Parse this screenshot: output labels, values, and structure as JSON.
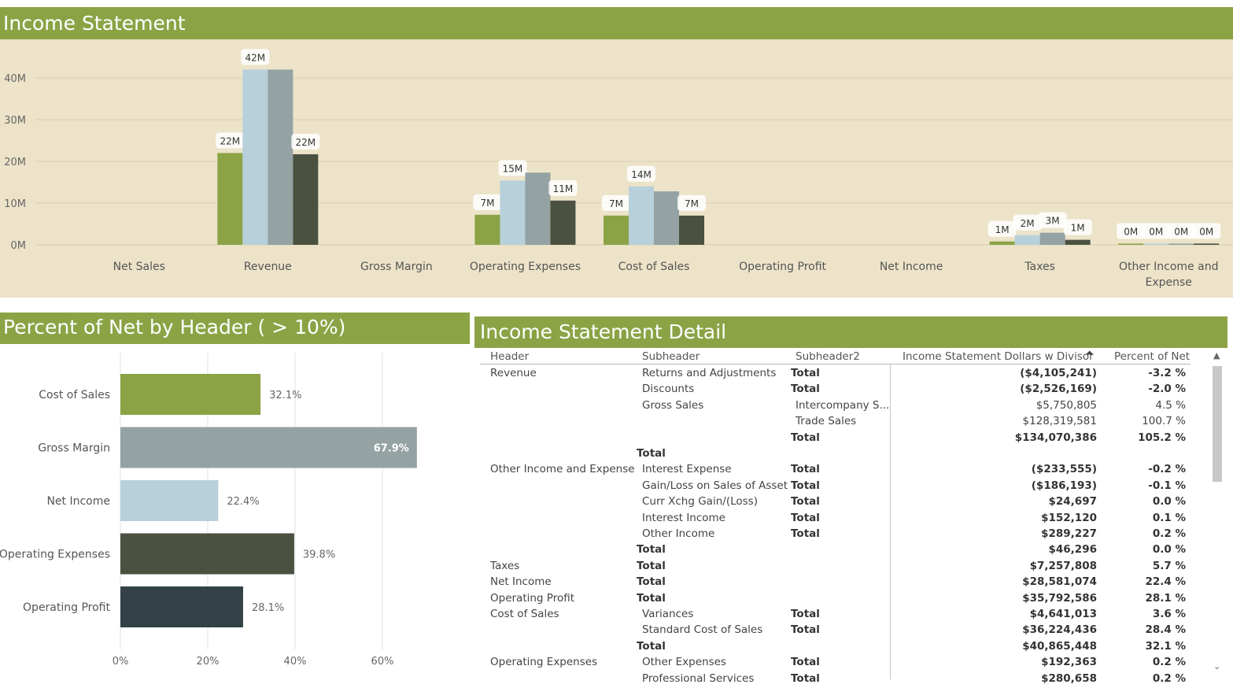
{
  "top_banner": {
    "title": "Income Statement"
  },
  "left_banner": {
    "title": "Percent of Net by Header ( > 10%)"
  },
  "right_banner": {
    "title": "Income Statement Detail"
  },
  "colors": {
    "green": "#8ba345",
    "lightblue": "#b7d0da",
    "gray": "#94a2a3",
    "dark": "#4b5140",
    "slate": "#344147",
    "panel": "#ece3c9"
  },
  "chart_data": [
    {
      "type": "bar",
      "title": "",
      "ylim": [
        0,
        45
      ],
      "y_ticks": [
        "0M",
        "10M",
        "20M",
        "30M",
        "40M"
      ],
      "y_tick_values": [
        0,
        10,
        20,
        30,
        40
      ],
      "categories": [
        "Net Sales",
        "Revenue",
        "Gross Margin",
        "Operating Expenses",
        "Cost of Sales",
        "Operating Profit",
        "Net Income",
        "Taxes",
        "Other Income and Expense"
      ],
      "series": [
        {
          "values": [
            null,
            22,
            null,
            7.2,
            7,
            null,
            null,
            0.8,
            0.3
          ],
          "labels": [
            "",
            "22M",
            "",
            "7M",
            "7M",
            "",
            "",
            "1M",
            "0M"
          ],
          "color": "#8ba345"
        },
        {
          "values": [
            null,
            42,
            null,
            15.4,
            14,
            null,
            null,
            2.3,
            0.3
          ],
          "labels": [
            "",
            "42M",
            "",
            "15M",
            "14M",
            "",
            "",
            "2M",
            "0M"
          ],
          "color": "#b7d0da"
        },
        {
          "values": [
            null,
            42,
            null,
            17.3,
            12.8,
            null,
            null,
            2.9,
            0.3
          ],
          "labels": [
            "",
            "",
            "",
            "",
            "",
            "",
            "",
            "3M",
            "0M"
          ],
          "color": "#94a2a3"
        },
        {
          "values": [
            null,
            21.7,
            null,
            10.6,
            7,
            null,
            null,
            1.2,
            0.3
          ],
          "labels": [
            "",
            "22M",
            "",
            "11M",
            "7M",
            "",
            "",
            "1M",
            "0M"
          ],
          "color": "#4b5140"
        }
      ],
      "grid": true
    },
    {
      "type": "bar",
      "orientation": "horizontal",
      "categories": [
        "Cost of Sales",
        "Gross Margin",
        "Net Income",
        "Operating Expenses",
        "Operating Profit"
      ],
      "values": [
        32.1,
        67.9,
        22.4,
        39.8,
        28.1
      ],
      "labels": [
        "32.1%",
        "67.9%",
        "22.4%",
        "39.8%",
        "28.1%"
      ],
      "colors": [
        "#8ba345",
        "#94a2a3",
        "#b7d0da",
        "#4b5140",
        "#344147"
      ],
      "x_ticks": [
        "0%",
        "20%",
        "40%",
        "60%"
      ],
      "x_tick_values": [
        0,
        20,
        40,
        60
      ],
      "xlim": [
        0,
        75
      ],
      "grid": true
    }
  ],
  "table": {
    "headers": [
      "Header",
      "Subheader",
      "Subheader2",
      "Income Statement Dollars w Divisor",
      "Percent of Net"
    ],
    "sort_icon": "sort-ascending-icon",
    "rows": [
      {
        "h": "Revenue",
        "s": "Returns and Adjustments",
        "s2": "Total",
        "s2pos": "t",
        "d": "($4,105,241)",
        "p": "-3.2 %",
        "bold": true
      },
      {
        "h": "",
        "s": "Discounts",
        "s2": "Total",
        "s2pos": "t",
        "d": "($2,526,169)",
        "p": "-2.0 %",
        "bold": true
      },
      {
        "h": "",
        "s": "Gross Sales",
        "s2": "Intercompany S...",
        "s2pos": "n",
        "d": "$5,750,805",
        "p": "4.5 %",
        "bold": false
      },
      {
        "h": "",
        "s": "",
        "s2": "Trade Sales",
        "s2pos": "n",
        "d": "$128,319,581",
        "p": "100.7 %",
        "bold": false
      },
      {
        "h": "",
        "s": "",
        "s2": "Total",
        "s2pos": "t",
        "d": "$134,070,386",
        "p": "105.2 %",
        "bold": true
      },
      {
        "h": "",
        "s": "Total",
        "spos": "t",
        "s2": "",
        "s2pos": "n",
        "d": "",
        "p": "",
        "bold": true
      },
      {
        "h": "Other Income and Expense",
        "s": "Interest Expense",
        "s2": "Total",
        "s2pos": "t",
        "d": "($233,555)",
        "p": "-0.2 %",
        "bold": true
      },
      {
        "h": "",
        "s": "Gain/Loss on Sales of Asset",
        "s2": "Total",
        "s2pos": "t",
        "d": "($186,193)",
        "p": "-0.1 %",
        "bold": true
      },
      {
        "h": "",
        "s": "Curr Xchg Gain/(Loss)",
        "s2": "Total",
        "s2pos": "t",
        "d": "$24,697",
        "p": "0.0 %",
        "bold": true
      },
      {
        "h": "",
        "s": "Interest Income",
        "s2": "Total",
        "s2pos": "t",
        "d": "$152,120",
        "p": "0.1 %",
        "bold": true
      },
      {
        "h": "",
        "s": "Other Income",
        "s2": "Total",
        "s2pos": "t",
        "d": "$289,227",
        "p": "0.2 %",
        "bold": true
      },
      {
        "h": "",
        "s": "Total",
        "spos": "t",
        "s2": "",
        "s2pos": "n",
        "d": "$46,296",
        "p": "0.0 %",
        "bold": true
      },
      {
        "h": "Taxes",
        "s": "Total",
        "spos": "t",
        "s2": "",
        "s2pos": "n",
        "d": "$7,257,808",
        "p": "5.7 %",
        "bold": true
      },
      {
        "h": "Net Income",
        "s": "Total",
        "spos": "t",
        "s2": "",
        "s2pos": "n",
        "d": "$28,581,074",
        "p": "22.4 %",
        "bold": true
      },
      {
        "h": "Operating Profit",
        "s": "Total",
        "spos": "t",
        "s2": "",
        "s2pos": "n",
        "d": "$35,792,586",
        "p": "28.1 %",
        "bold": true
      },
      {
        "h": "Cost of Sales",
        "s": "Variances",
        "s2": "Total",
        "s2pos": "t",
        "d": "$4,641,013",
        "p": "3.6 %",
        "bold": true
      },
      {
        "h": "",
        "s": "Standard Cost of Sales",
        "s2": "Total",
        "s2pos": "t",
        "d": "$36,224,436",
        "p": "28.4 %",
        "bold": true
      },
      {
        "h": "",
        "s": "Total",
        "spos": "t",
        "s2": "",
        "s2pos": "n",
        "d": "$40,865,448",
        "p": "32.1 %",
        "bold": true
      },
      {
        "h": "Operating Expenses",
        "s": "Other Expenses",
        "s2": "Total",
        "s2pos": "t",
        "d": "$192,363",
        "p": "0.2 %",
        "bold": true
      },
      {
        "h": "",
        "s": "Professional Services",
        "s2": "Total",
        "s2pos": "t",
        "d": "$280,658",
        "p": "0.2 %",
        "bold": true
      }
    ]
  }
}
